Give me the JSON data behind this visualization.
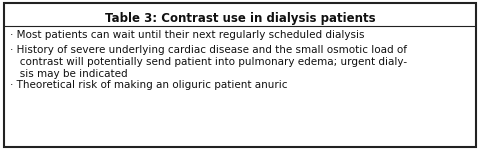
{
  "title": "Table 3: Contrast use in dialysis patients",
  "title_fontsize": 8.5,
  "body_fontsize": 7.5,
  "background_color": "#ffffff",
  "border_color": "#222222",
  "text_color": "#111111",
  "figsize": [
    4.8,
    1.5
  ],
  "dpi": 100,
  "bullet1": "· Most patients can wait until their next regularly scheduled dialysis",
  "bullet2_line1": "· History of severe underlying cardiac disease and the small osmotic load of",
  "bullet2_line2": "   contrast will potentially send patient into pulmonary edema; urgent dialy-",
  "bullet2_line3": "   sis may be indicated",
  "bullet3": "· Theoretical risk of making an oliguric patient anuric"
}
